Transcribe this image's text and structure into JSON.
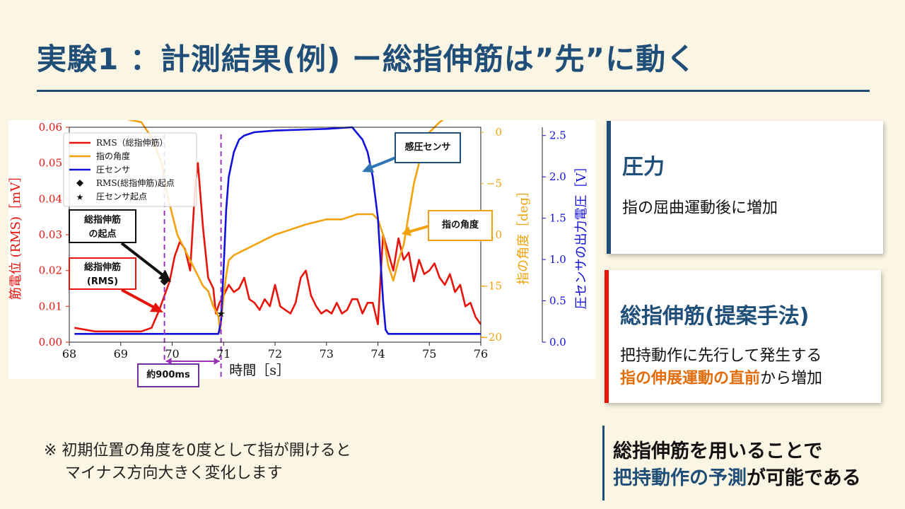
{
  "title": "実験1 ：計測結果(例) ー総指伸筋は”先”に動く",
  "chart_data": {
    "type": "line",
    "xlabel": "時間［s］",
    "ylabel_left": "筋電位 (RMS)［mV］",
    "ylabel_right1": "指の角度［deg］",
    "ylabel_right2": "圧センサの出力電圧［V］",
    "xlim": [
      68,
      76
    ],
    "xticks": [
      "68",
      "69",
      "70",
      "71",
      "72",
      "73",
      "74",
      "75",
      "76"
    ],
    "ylim_left": [
      0,
      0.06
    ],
    "yticks_left": [
      "0.00",
      "0.01",
      "0.02",
      "0.03",
      "0.04",
      "0.05",
      "0.06"
    ],
    "ylim_right1": [
      -20.5,
      0.5
    ],
    "yticks_right1": [
      "0",
      "−5",
      "−10",
      "−15",
      "−20"
    ],
    "ylim_right2": [
      0,
      2.6
    ],
    "yticks_right2": [
      "0.0",
      "0.5",
      "1.0",
      "1.5",
      "2.0",
      "2.5"
    ],
    "legend": {
      "position": "top-left",
      "entries": [
        "RMS（総指伸筋）",
        "指の角度",
        "圧センサ",
        "RMS(総指伸筋)起点",
        "圧センサ起点"
      ]
    },
    "series": [
      {
        "name": "RMS（総指伸筋）",
        "axis": "left",
        "color": "#e8140c",
        "x": [
          68.1,
          68.5,
          69.0,
          69.4,
          69.6,
          69.75,
          69.85,
          69.95,
          70.05,
          70.15,
          70.25,
          70.35,
          70.45,
          70.5,
          70.6,
          70.7,
          70.8,
          70.85,
          70.92,
          71.0,
          71.1,
          71.2,
          71.3,
          71.4,
          71.5,
          71.6,
          71.7,
          71.8,
          71.9,
          72.0,
          72.1,
          72.2,
          72.3,
          72.4,
          72.5,
          72.6,
          72.7,
          72.8,
          72.9,
          73.0,
          73.1,
          73.2,
          73.3,
          73.4,
          73.5,
          73.6,
          73.7,
          73.8,
          73.9,
          74.0,
          74.1,
          74.2,
          74.3,
          74.4,
          74.5,
          74.6,
          74.7,
          74.8,
          74.9,
          75.0,
          75.1,
          75.2,
          75.3,
          75.4,
          75.5,
          75.6,
          75.7,
          75.8,
          75.9,
          76.0
        ],
        "y": [
          0.004,
          0.003,
          0.003,
          0.003,
          0.004,
          0.009,
          0.013,
          0.017,
          0.024,
          0.028,
          0.026,
          0.02,
          0.044,
          0.05,
          0.032,
          0.018,
          0.015,
          0.008,
          0.011,
          0.013,
          0.016,
          0.014,
          0.015,
          0.018,
          0.012,
          0.011,
          0.009,
          0.012,
          0.01,
          0.016,
          0.01,
          0.009,
          0.008,
          0.011,
          0.018,
          0.02,
          0.013,
          0.01,
          0.008,
          0.009,
          0.008,
          0.011,
          0.008,
          0.009,
          0.012,
          0.012,
          0.008,
          0.011,
          0.011,
          0.005,
          0.03,
          0.025,
          0.02,
          0.029,
          0.023,
          0.025,
          0.017,
          0.023,
          0.019,
          0.02,
          0.022,
          0.018,
          0.016,
          0.019,
          0.014,
          0.016,
          0.01,
          0.011,
          0.007,
          0.005
        ]
      },
      {
        "name": "指の角度",
        "axis": "right1",
        "color": "#f2a20c",
        "x": [
          68.1,
          68.5,
          69.0,
          69.4,
          69.6,
          69.8,
          69.9,
          70.0,
          70.1,
          70.2,
          70.3,
          70.4,
          70.5,
          70.6,
          70.7,
          70.8,
          70.9,
          70.93,
          71.0,
          71.05,
          71.1,
          71.2,
          71.4,
          71.6,
          71.8,
          72.0,
          72.3,
          72.6,
          73.0,
          73.3,
          73.6,
          73.9,
          74.0,
          74.1,
          74.2,
          74.3,
          74.4,
          74.5,
          74.6,
          74.7,
          74.8,
          74.9,
          75.0,
          75.2,
          75.4,
          75.6,
          75.8,
          76.0
        ],
        "y": [
          1.5,
          1.5,
          1.4,
          1.0,
          -0.5,
          -3,
          -6,
          -8,
          -10,
          -11,
          -12,
          -13,
          -14,
          -15,
          -15.5,
          -17,
          -18,
          -19.5,
          -16,
          -14,
          -12.5,
          -12,
          -11.5,
          -11,
          -10.5,
          -10,
          -9.5,
          -9,
          -8.5,
          -8.5,
          -8,
          -8,
          -8.5,
          -10,
          -13,
          -14.5,
          -12.5,
          -11,
          -8,
          -5,
          -3,
          -1,
          0,
          1,
          1.7,
          2.1,
          2.6,
          2.8
        ]
      },
      {
        "name": "圧センサ",
        "axis": "right2",
        "color": "#1111dd",
        "x": [
          68.1,
          69.0,
          70.0,
          70.9,
          70.95,
          71.0,
          71.05,
          71.1,
          71.2,
          71.3,
          71.4,
          71.5,
          71.6,
          71.8,
          72.0,
          72.5,
          73.0,
          73.5,
          73.7,
          73.8,
          73.9,
          74.0,
          74.05,
          74.1,
          74.15,
          74.2,
          74.3,
          75.0,
          76.0
        ],
        "y": [
          0.1,
          0.1,
          0.1,
          0.1,
          0.25,
          0.9,
          1.6,
          2.0,
          2.3,
          2.45,
          2.5,
          2.52,
          2.54,
          2.55,
          2.56,
          2.57,
          2.58,
          2.6,
          2.45,
          2.3,
          2.0,
          1.5,
          1.0,
          0.5,
          0.15,
          0.1,
          0.1,
          0.1,
          0.1
        ]
      }
    ],
    "markers": [
      {
        "name": "RMS(総指伸筋)起点",
        "symbol": "diamond",
        "x": 69.85,
        "y": 0.017
      },
      {
        "name": "圧センサ起点",
        "symbol": "star",
        "x": 70.95,
        "y": 0.008
      }
    ],
    "vlines_x": [
      69.85,
      70.95
    ],
    "annotations": {
      "interval": "約900ms",
      "onset": [
        "総指伸筋",
        "の起点"
      ],
      "rms": [
        "総指伸筋",
        "(RMS)"
      ],
      "pressure": "感圧センサ",
      "angle": "指の角度"
    }
  },
  "cards": {
    "pressure": {
      "heading": "圧力",
      "body": "指の屈曲運動後に増加",
      "accent": "#1f4e79"
    },
    "muscle": {
      "heading": "総指伸筋(提案手法)",
      "body_line1": "把持動作に先行して発生する",
      "body_line2_highlight": "指の伸展運動の直前",
      "body_line2_rest": "から増加",
      "accent": "#e8140c"
    }
  },
  "note": {
    "line1": "※ 初期位置の角度を0度として指が開けると",
    "line2": "マイナス方向大きく変化します"
  },
  "conclusion": {
    "line1": "総指伸筋を用いることで",
    "line2_blue": "把持動作の予測",
    "line2_rest": "が可能である"
  }
}
